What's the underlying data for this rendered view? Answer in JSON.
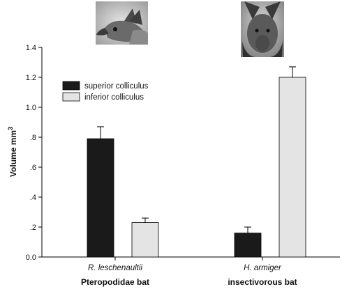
{
  "chart_data": {
    "type": "bar",
    "categories": [
      "R. leschenaultii",
      "H. armiger"
    ],
    "category_groups": [
      "Pteropodidae bat",
      "insectivorous bat"
    ],
    "series": [
      {
        "name": "superior colliculus",
        "values": [
          0.79,
          0.16
        ],
        "errors": [
          0.08,
          0.04
        ],
        "color": "#1a1a1a"
      },
      {
        "name": "inferior colliculus",
        "values": [
          0.23,
          1.2
        ],
        "errors": [
          0.03,
          0.07
        ],
        "color": "#e4e4e4"
      }
    ],
    "ylabel": "Volume mm",
    "ylabel_superscript": "3",
    "ylim": [
      0,
      1.4
    ],
    "yticks": [
      "0.0",
      ".2",
      ".4",
      ".6",
      ".8",
      "1.0",
      "1.2",
      "1.4"
    ],
    "legend_position": "top-left",
    "grid": false
  },
  "photos": [
    {
      "name": "fruit-bat-photo",
      "subject": "Pteropodidae bat"
    },
    {
      "name": "insectivorous-bat-photo",
      "subject": "insectivorous bat"
    }
  ]
}
